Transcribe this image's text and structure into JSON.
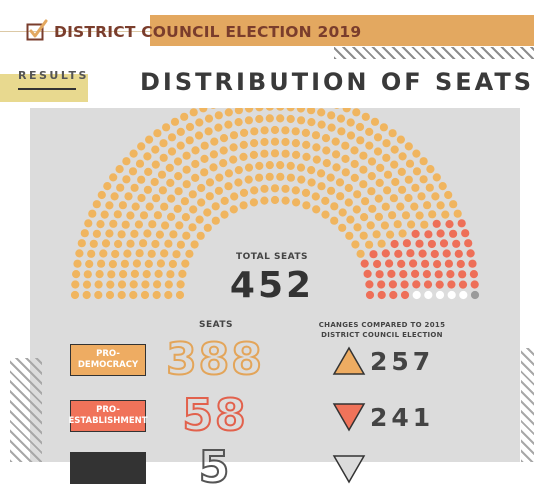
{
  "header": {
    "title": "DISTRICT COUNCIL ELECTION 2019",
    "section_tab": "RESULTS",
    "main_title": "DISTRIBUTION OF SEATS",
    "check_icon": "checkbox-check-icon"
  },
  "colors": {
    "pro_democracy": "#f0b55f",
    "pro_establishment": "#ee6f58",
    "independent": "#ffffff",
    "vacant": "#9a9a9a"
  },
  "chart_data": {
    "type": "hemicycle",
    "total_label": "TOTAL SEATS",
    "total_value": "452",
    "seats_header": "SEATS",
    "changes_header_line1": "CHANGES COMPARED TO 2015",
    "changes_header_line2": "DISTRICT COUNCIL ELECTION",
    "rows": 10,
    "groups": [
      {
        "party_line1": "PRO-",
        "party_line2": "DEMOCRACY",
        "seats": 388,
        "seats_text": "388",
        "change": 257,
        "change_text": "257",
        "direction": "up"
      },
      {
        "party_line1": "PRO-",
        "party_line2": "ESTABLISHMENT",
        "seats": 58,
        "seats_text": "58",
        "change": -241,
        "change_text": "241",
        "direction": "down"
      },
      {
        "party_line1": "",
        "party_line2": "",
        "seats": 5,
        "seats_text": "5",
        "change": null,
        "change_text": "",
        "direction": "down"
      },
      {
        "party_line1": "",
        "party_line2": "",
        "seats": 1,
        "seats_text": "",
        "change": null,
        "change_text": "",
        "direction": ""
      }
    ]
  }
}
